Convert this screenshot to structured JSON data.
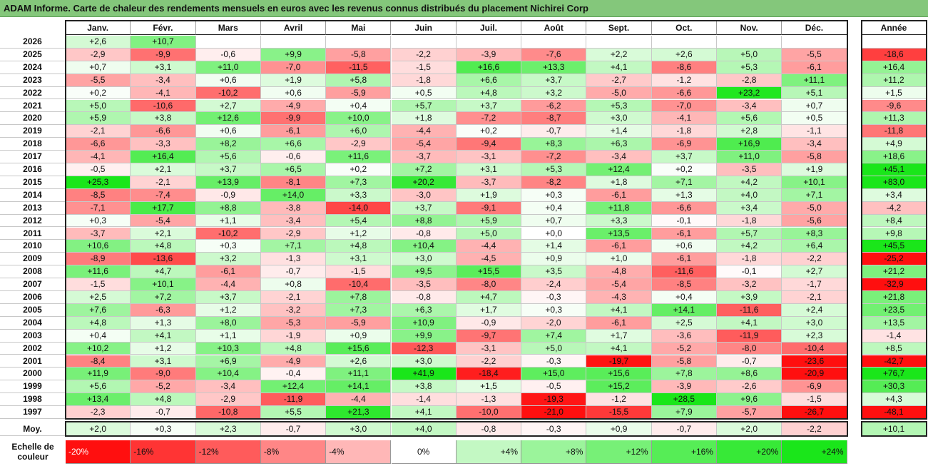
{
  "title": "ADAM Informe. Carte de chaleur des rendements mensuels en euros avec les revenus connus distribués du placement Nichirei Corp",
  "chart_data": {
    "type": "heatmap",
    "months": [
      "Janv.",
      "Févr.",
      "Mars",
      "Avril",
      "Mai",
      "Juin",
      "Juil.",
      "Août",
      "Sept.",
      "Oct.",
      "Nov.",
      "Déc."
    ],
    "year_header": "Année",
    "rows": [
      {
        "year": "2026",
        "values": [
          "+2,6",
          "+10,7",
          "",
          "",
          "",
          "",
          "",
          "",
          "",
          "",
          "",
          ""
        ],
        "annual": ""
      },
      {
        "year": "2025",
        "values": [
          "-2,9",
          "-9,9",
          "-0,6",
          "+9,9",
          "-5,8",
          "-2,2",
          "-3,9",
          "-7,6",
          "+2,2",
          "+2,6",
          "+5,0",
          "-5,5"
        ],
        "annual": "-18,6"
      },
      {
        "year": "2024",
        "values": [
          "+0,7",
          "+3,1",
          "+11,0",
          "-7,0",
          "-11,5",
          "-1,5",
          "+16,6",
          "+13,3",
          "+4,1",
          "-8,6",
          "+5,3",
          "-6,1"
        ],
        "annual": "+16,4"
      },
      {
        "year": "2023",
        "values": [
          "-5,5",
          "-3,4",
          "+0,6",
          "+1,9",
          "+5,8",
          "-1,8",
          "+6,6",
          "+3,7",
          "-2,7",
          "-1,2",
          "-2,8",
          "+11,1"
        ],
        "annual": "+11,2"
      },
      {
        "year": "2022",
        "values": [
          "+0,2",
          "-4,1",
          "-10,2",
          "+0,6",
          "-5,9",
          "+0,5",
          "+4,8",
          "+3,2",
          "-5,0",
          "-6,6",
          "+23,2",
          "+5,1"
        ],
        "annual": "+1,5"
      },
      {
        "year": "2021",
        "values": [
          "+5,0",
          "-10,6",
          "+2,7",
          "-4,9",
          "+0,4",
          "+5,7",
          "+3,7",
          "-6,2",
          "+5,3",
          "-7,0",
          "-3,4",
          "+0,7"
        ],
        "annual": "-9,6"
      },
      {
        "year": "2020",
        "values": [
          "+5,9",
          "+3,8",
          "+12,6",
          "-9,9",
          "+10,0",
          "+1,8",
          "-7,2",
          "-8,7",
          "+3,0",
          "-4,1",
          "+5,6",
          "+0,5"
        ],
        "annual": "+11,3"
      },
      {
        "year": "2019",
        "values": [
          "-2,1",
          "-6,6",
          "+0,6",
          "-6,1",
          "+6,0",
          "-4,4",
          "+0,2",
          "-0,7",
          "+1,4",
          "-1,8",
          "+2,8",
          "-1,1"
        ],
        "annual": "-11,8"
      },
      {
        "year": "2018",
        "values": [
          "-6,6",
          "-3,3",
          "+8,2",
          "+6,6",
          "-2,9",
          "-5,4",
          "-9,4",
          "+8,3",
          "+6,3",
          "-6,9",
          "+16,9",
          "-3,4"
        ],
        "annual": "+4,9"
      },
      {
        "year": "2017",
        "values": [
          "-4,1",
          "+16,4",
          "+5,6",
          "-0,6",
          "+11,6",
          "-3,7",
          "-3,1",
          "-7,2",
          "-3,4",
          "+3,7",
          "+11,0",
          "-5,8"
        ],
        "annual": "+18,6"
      },
      {
        "year": "2016",
        "values": [
          "-0,5",
          "+2,1",
          "+3,7",
          "+6,5",
          "+0,2",
          "+7,2",
          "+3,1",
          "+5,3",
          "+12,4",
          "+0,2",
          "-3,5",
          "+1,9"
        ],
        "annual": "+45,1"
      },
      {
        "year": "2015",
        "values": [
          "+25,3",
          "-2,1",
          "+13,9",
          "-8,1",
          "+7,3",
          "+20,2",
          "-3,7",
          "-8,2",
          "+1,8",
          "+7,1",
          "+4,2",
          "+10,1"
        ],
        "annual": "+83,0"
      },
      {
        "year": "2014",
        "values": [
          "-8,5",
          "-7,4",
          "-0,9",
          "+14,0",
          "+3,3",
          "-3,0",
          "+1,9",
          "+0,3",
          "-6,1",
          "+1,3",
          "+4,0",
          "+7,1"
        ],
        "annual": "+3,4"
      },
      {
        "year": "2013",
        "values": [
          "-7,1",
          "+17,7",
          "+8,8",
          "-3,8",
          "-14,0",
          "+3,7",
          "-9,1",
          "+0,4",
          "+11,8",
          "-6,6",
          "+3,4",
          "-5,0"
        ],
        "annual": "-4,2"
      },
      {
        "year": "2012",
        "values": [
          "+0,3",
          "-5,4",
          "+1,1",
          "-3,4",
          "+5,4",
          "+8,8",
          "+5,9",
          "+0,7",
          "+3,3",
          "-0,1",
          "-1,8",
          "-5,6"
        ],
        "annual": "+8,4"
      },
      {
        "year": "2011",
        "values": [
          "-3,7",
          "+2,1",
          "-10,2",
          "-2,9",
          "+1,2",
          "-0,8",
          "+5,0",
          "+0,0",
          "+13,5",
          "-6,1",
          "+5,7",
          "+8,3"
        ],
        "annual": "+9,8"
      },
      {
        "year": "2010",
        "values": [
          "+10,6",
          "+4,8",
          "+0,3",
          "+7,1",
          "+4,8",
          "+10,4",
          "-4,4",
          "+1,4",
          "-6,1",
          "+0,6",
          "+4,2",
          "+6,4"
        ],
        "annual": "+45,5"
      },
      {
        "year": "2009",
        "values": [
          "-8,9",
          "-13,6",
          "+3,2",
          "-1,3",
          "+3,1",
          "+3,0",
          "-4,5",
          "+0,9",
          "+1,0",
          "-6,1",
          "-1,8",
          "-2,2"
        ],
        "annual": "-25,2"
      },
      {
        "year": "2008",
        "values": [
          "+11,6",
          "+4,7",
          "-6,1",
          "-0,7",
          "-1,5",
          "+9,5",
          "+15,5",
          "+3,5",
          "-4,8",
          "-11,6",
          "-0,1",
          "+2,7"
        ],
        "annual": "+21,2"
      },
      {
        "year": "2007",
        "values": [
          "-1,5",
          "+10,1",
          "-4,4",
          "+0,8",
          "-10,4",
          "-3,5",
          "-8,0",
          "-2,4",
          "-5,4",
          "-8,5",
          "-3,2",
          "-1,7"
        ],
        "annual": "-32,9"
      },
      {
        "year": "2006",
        "values": [
          "+2,5",
          "+7,2",
          "+3,7",
          "-2,1",
          "+7,8",
          "-0,8",
          "+4,7",
          "-0,3",
          "-4,3",
          "+0,4",
          "+3,9",
          "-2,1"
        ],
        "annual": "+21,8"
      },
      {
        "year": "2005",
        "values": [
          "+7,6",
          "-6,3",
          "+1,2",
          "-3,2",
          "+7,3",
          "+6,3",
          "+1,7",
          "+0,3",
          "+4,1",
          "+14,1",
          "-11,6",
          "+2,4"
        ],
        "annual": "+23,5"
      },
      {
        "year": "2004",
        "values": [
          "+4,8",
          "+1,3",
          "+8,0",
          "-5,3",
          "-5,9",
          "+10,9",
          "-0,9",
          "-2,0",
          "-6,1",
          "+2,5",
          "+4,1",
          "+3,0"
        ],
        "annual": "+13,5"
      },
      {
        "year": "2003",
        "values": [
          "+0,4",
          "+4,1",
          "+1,1",
          "-1,9",
          "+0,9",
          "+9,9",
          "-9,7",
          "+7,4",
          "+1,7",
          "-3,6",
          "-11,9",
          "+2,3"
        ],
        "annual": "-1,4"
      },
      {
        "year": "2002",
        "values": [
          "+10,2",
          "+1,2",
          "+10,3",
          "+4,8",
          "+15,6",
          "-12,3",
          "-3,1",
          "+5,0",
          "+4,1",
          "-5,2",
          "-8,0",
          "-10,4"
        ],
        "annual": "+8,5"
      },
      {
        "year": "2001",
        "values": [
          "-8,4",
          "+3,1",
          "+6,9",
          "-4,9",
          "+2,6",
          "+3,0",
          "-2,2",
          "-0,3",
          "-19,7",
          "-5,8",
          "-0,7",
          "-23,6"
        ],
        "annual": "-42,7"
      },
      {
        "year": "2000",
        "values": [
          "+11,9",
          "-9,0",
          "+10,4",
          "-0,4",
          "+11,1",
          "+41,9",
          "-18,4",
          "+15,0",
          "+15,6",
          "+7,8",
          "+8,6",
          "-20,9"
        ],
        "annual": "+76,7"
      },
      {
        "year": "1999",
        "values": [
          "+5,6",
          "-5,2",
          "-3,4",
          "+12,4",
          "+14,1",
          "+3,8",
          "+1,5",
          "-0,5",
          "+15,2",
          "-3,9",
          "-2,6",
          "-6,9"
        ],
        "annual": "+30,3"
      },
      {
        "year": "1998",
        "values": [
          "+13,4",
          "+4,8",
          "-2,9",
          "-11,9",
          "-4,4",
          "-1,4",
          "-1,3",
          "-19,3",
          "-1,2",
          "+28,5",
          "+9,6",
          "-1,5"
        ],
        "annual": "+4,3"
      },
      {
        "year": "1997",
        "values": [
          "-2,3",
          "-0,7",
          "-10,8",
          "+5,5",
          "+21,3",
          "+4,1",
          "-10,0",
          "-21,0",
          "-15,5",
          "+7,9",
          "-5,7",
          "-26,7"
        ],
        "annual": "-48,1"
      }
    ],
    "average": {
      "label": "Moy.",
      "values": [
        "+2,0",
        "+0,3",
        "+2,3",
        "-0,7",
        "+3,0",
        "+4,0",
        "-0,8",
        "-0,3",
        "+0,9",
        "-0,7",
        "+2,0",
        "-2,2"
      ],
      "annual": "+10,1"
    },
    "scale": {
      "label": "Echelle de couleur",
      "stops": [
        "-20%",
        "-16%",
        "-12%",
        "-8%",
        "-4%",
        "0%",
        "+4%",
        "+8%",
        "+12%",
        "+16%",
        "+20%",
        "+24%"
      ]
    }
  }
}
